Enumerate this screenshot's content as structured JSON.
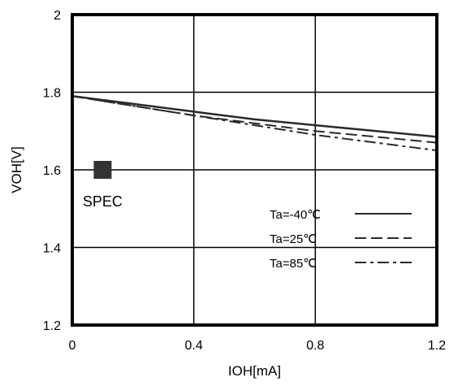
{
  "chart_data": {
    "type": "line",
    "xlabel": "IOH[mA]",
    "ylabel": "VOH[V]",
    "xlim": [
      0,
      1.2
    ],
    "ylim": [
      1.2,
      2.0
    ],
    "x_ticks": [
      {
        "value": 0,
        "label": "0"
      },
      {
        "value": 0.4,
        "label": "0.4"
      },
      {
        "value": 0.8,
        "label": "0.8"
      },
      {
        "value": 1.2,
        "label": "1.2"
      }
    ],
    "y_ticks": [
      {
        "value": 1.2,
        "label": "1.2"
      },
      {
        "value": 1.4,
        "label": "1.4"
      },
      {
        "value": 1.6,
        "label": "1.6"
      },
      {
        "value": 1.8,
        "label": "1.8"
      },
      {
        "value": 2.0,
        "label": "2"
      }
    ],
    "grid": true,
    "legend_position": "bottom-right",
    "series": [
      {
        "name": "Ta=-40℃",
        "line_style": "solid",
        "x": [
          0,
          0.2,
          0.4,
          0.6,
          0.8,
          1.0,
          1.2
        ],
        "y": [
          1.79,
          1.77,
          1.75,
          1.73,
          1.715,
          1.7,
          1.685
        ]
      },
      {
        "name": "Ta=25℃",
        "line_style": "dashed",
        "x": [
          0,
          0.2,
          0.4,
          0.6,
          0.8,
          1.0,
          1.2
        ],
        "y": [
          1.79,
          1.765,
          1.74,
          1.72,
          1.7,
          1.685,
          1.67
        ]
      },
      {
        "name": "Ta=85℃",
        "line_style": "dash-dot",
        "x": [
          0,
          0.2,
          0.4,
          0.6,
          0.8,
          1.0,
          1.2
        ],
        "y": [
          1.79,
          1.765,
          1.74,
          1.715,
          1.69,
          1.67,
          1.65
        ]
      }
    ],
    "annotations": [
      {
        "text": "SPEC",
        "marker": "square",
        "x": 0.1,
        "y": 1.6
      }
    ],
    "colors": {
      "line": "#2a2a2a",
      "marker": "#333333",
      "grid": "#000000",
      "frame": "#000000"
    }
  }
}
